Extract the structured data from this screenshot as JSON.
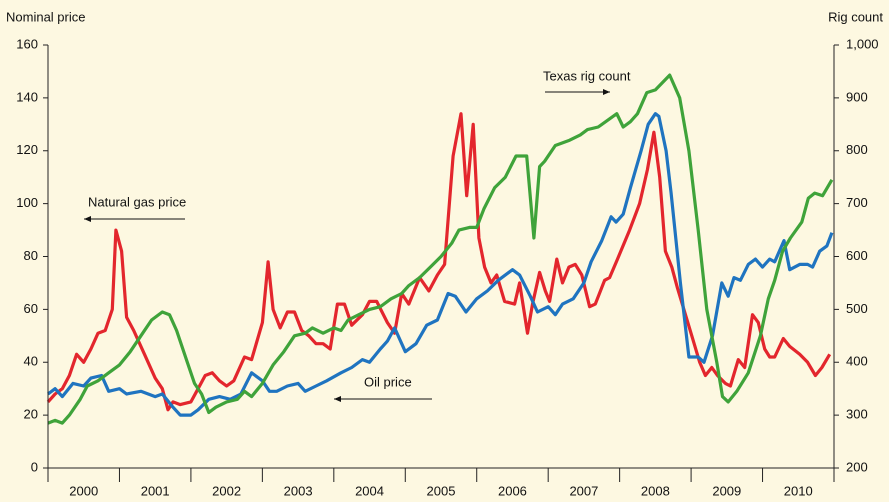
{
  "chart_data": {
    "type": "line",
    "y_label": "Nominal price",
    "y2_label": "Rig count",
    "categories": [
      "2000",
      "2001",
      "2002",
      "2003",
      "2004",
      "2005",
      "2006",
      "2007",
      "2008",
      "2009",
      "2010"
    ],
    "xlim": [
      2000,
      2011
    ],
    "xticks": [
      2000,
      2001,
      2002,
      2003,
      2004,
      2005,
      2006,
      2007,
      2008,
      2009,
      2010,
      2011
    ],
    "ylim": [
      0,
      160
    ],
    "yticks": [
      0,
      20,
      40,
      60,
      80,
      100,
      120,
      140,
      160
    ],
    "y2lim": [
      200,
      1000
    ],
    "y2ticks": [
      200,
      300,
      400,
      500,
      600,
      700,
      800,
      900,
      {
        "value": 1000,
        "label": "1,000"
      }
    ],
    "grid": false,
    "annotations": [
      "Texas rig count",
      "Natural gas price",
      "Oil price"
    ],
    "series": [
      {
        "name": "Natural gas price",
        "color": "#e3262d",
        "axis": "y",
        "x": [
          2000.0,
          2000.1,
          2000.2,
          2000.3,
          2000.4,
          2000.5,
          2000.6,
          2000.7,
          2000.8,
          2000.9,
          2000.95,
          2001.03,
          2001.1,
          2001.2,
          2001.35,
          2001.5,
          2001.6,
          2001.68,
          2001.75,
          2001.85,
          2002.0,
          2002.1,
          2002.2,
          2002.3,
          2002.4,
          2002.5,
          2002.6,
          2002.75,
          2002.85,
          2003.0,
          2003.08,
          2003.15,
          2003.25,
          2003.35,
          2003.45,
          2003.55,
          2003.65,
          2003.75,
          2003.85,
          2003.95,
          2004.05,
          2004.15,
          2004.25,
          2004.4,
          2004.5,
          2004.6,
          2004.75,
          2004.85,
          2004.95,
          2005.05,
          2005.2,
          2005.33,
          2005.45,
          2005.55,
          2005.67,
          2005.78,
          2005.86,
          2005.95,
          2006.03,
          2006.11,
          2006.2,
          2006.28,
          2006.39,
          2006.53,
          2006.6,
          2006.71,
          2006.78,
          2006.88,
          2006.96,
          2007.02,
          2007.12,
          2007.2,
          2007.29,
          2007.38,
          2007.47,
          2007.58,
          2007.66,
          2007.79,
          2007.86,
          2007.97,
          2008.14,
          2008.28,
          2008.39,
          2008.48,
          2008.56,
          2008.64,
          2008.73,
          2008.81,
          2008.9,
          2009.01,
          2009.12,
          2009.2,
          2009.29,
          2009.37,
          2009.48,
          2009.55,
          2009.66,
          2009.75,
          2009.86,
          2009.94,
          2010.03,
          2010.1,
          2010.17,
          2010.29,
          2010.38,
          2010.52,
          2010.63,
          2010.74,
          2010.83,
          2010.94
        ],
        "values": [
          25,
          28,
          30,
          35,
          43,
          40,
          45,
          51,
          52,
          60,
          90,
          82,
          57,
          52,
          43,
          34,
          30,
          22,
          25,
          24,
          25,
          30,
          35,
          36,
          33,
          31,
          33,
          42,
          41,
          55,
          78,
          60,
          53,
          59,
          59,
          52,
          50,
          47,
          47,
          45,
          62,
          62,
          54,
          58,
          63,
          63,
          55,
          51,
          66,
          62,
          72,
          67,
          73,
          77,
          118,
          134,
          103,
          130,
          87,
          76,
          70,
          73,
          63,
          62,
          70,
          51,
          62,
          74,
          67,
          63,
          79,
          70,
          76,
          77,
          73,
          61,
          62,
          71,
          72,
          79,
          90,
          100,
          113,
          127,
          110,
          82,
          76,
          68,
          60,
          50,
          40,
          35,
          38,
          35,
          32,
          31,
          41,
          38,
          58,
          55,
          45,
          42,
          42,
          49,
          46,
          43,
          40,
          35,
          38,
          43
        ]
      },
      {
        "name": "Oil price",
        "color": "#1f74c0",
        "axis": "y",
        "x": [
          2000.0,
          2000.1,
          2000.2,
          2000.35,
          2000.5,
          2000.6,
          2000.75,
          2000.85,
          2001.0,
          2001.1,
          2001.3,
          2001.5,
          2001.6,
          2001.75,
          2001.85,
          2002.0,
          2002.1,
          2002.25,
          2002.4,
          2002.55,
          2002.7,
          2002.85,
          2003.0,
          2003.1,
          2003.2,
          2003.35,
          2003.5,
          2003.6,
          2003.75,
          2003.9,
          2004.1,
          2004.25,
          2004.4,
          2004.5,
          2004.65,
          2004.75,
          2004.85,
          2005.0,
          2005.15,
          2005.3,
          2005.45,
          2005.6,
          2005.7,
          2005.85,
          2006.0,
          2006.15,
          2006.3,
          2006.5,
          2006.6,
          2006.75,
          2006.85,
          2007.0,
          2007.1,
          2007.2,
          2007.35,
          2007.5,
          2007.6,
          2007.75,
          2007.88,
          2007.95,
          2008.05,
          2008.15,
          2008.3,
          2008.4,
          2008.5,
          2008.55,
          2008.65,
          2008.72,
          2008.85,
          2008.97,
          2009.1,
          2009.18,
          2009.3,
          2009.43,
          2009.52,
          2009.6,
          2009.69,
          2009.8,
          2009.9,
          2010.0,
          2010.1,
          2010.17,
          2010.3,
          2010.38,
          2010.52,
          2010.63,
          2010.7,
          2010.8,
          2010.9,
          2010.97
        ],
        "values": [
          28,
          30,
          27,
          32,
          31,
          34,
          35,
          29,
          30,
          28,
          29,
          27,
          28,
          23,
          20,
          20,
          22,
          26,
          27,
          26,
          28,
          36,
          33,
          29,
          29,
          31,
          32,
          29,
          31,
          33,
          36,
          38,
          41,
          40,
          45,
          48,
          53,
          44,
          47,
          54,
          56,
          66,
          65,
          59,
          64,
          67,
          71,
          75,
          73,
          65,
          59,
          61,
          58,
          62,
          64,
          70,
          78,
          86,
          95,
          93,
          96,
          106,
          120,
          130,
          134,
          133,
          120,
          104,
          70,
          42,
          42,
          40,
          50,
          70,
          65,
          72,
          71,
          77,
          79,
          76,
          79,
          78,
          86,
          75,
          77,
          77,
          76,
          82,
          84,
          89
        ]
      },
      {
        "name": "Texas rig count",
        "color": "#3fa33a",
        "axis": "y2",
        "x": [
          2000.0,
          2000.1,
          2000.2,
          2000.3,
          2000.45,
          2000.55,
          2000.7,
          2000.85,
          2001.0,
          2001.15,
          2001.3,
          2001.45,
          2001.6,
          2001.7,
          2001.8,
          2001.95,
          2002.05,
          2002.15,
          2002.25,
          2002.35,
          2002.5,
          2002.65,
          2002.75,
          2002.85,
          2003.0,
          2003.15,
          2003.3,
          2003.45,
          2003.6,
          2003.7,
          2003.85,
          2004.0,
          2004.1,
          2004.2,
          2004.35,
          2004.5,
          2004.65,
          2004.8,
          2004.95,
          2005.05,
          2005.2,
          2005.35,
          2005.5,
          2005.65,
          2005.75,
          2005.9,
          2006.0,
          2006.1,
          2006.25,
          2006.4,
          2006.55,
          2006.7,
          2006.8,
          2006.88,
          2006.95,
          2007.1,
          2007.3,
          2007.45,
          2007.55,
          2007.7,
          2007.96,
          2008.05,
          2008.15,
          2008.25,
          2008.38,
          2008.5,
          2008.7,
          2008.84,
          2008.97,
          2009.1,
          2009.22,
          2009.36,
          2009.44,
          2009.52,
          2009.64,
          2009.8,
          2009.97,
          2010.08,
          2010.17,
          2010.28,
          2010.39,
          2010.55,
          2010.64,
          2010.73,
          2010.84,
          2010.97
        ],
        "values": [
          285,
          290,
          285,
          300,
          330,
          355,
          365,
          380,
          395,
          420,
          450,
          480,
          495,
          490,
          460,
          400,
          360,
          340,
          305,
          315,
          325,
          330,
          345,
          335,
          360,
          395,
          420,
          450,
          455,
          465,
          455,
          465,
          460,
          480,
          490,
          500,
          505,
          520,
          530,
          545,
          560,
          580,
          600,
          625,
          650,
          655,
          655,
          690,
          730,
          750,
          790,
          790,
          635,
          770,
          780,
          810,
          820,
          830,
          840,
          845,
          870,
          845,
          855,
          870,
          910,
          915,
          943,
          900,
          800,
          650,
          500,
          400,
          335,
          325,
          345,
          380,
          450,
          520,
          555,
          610,
          635,
          665,
          710,
          720,
          715,
          745
        ]
      }
    ]
  }
}
